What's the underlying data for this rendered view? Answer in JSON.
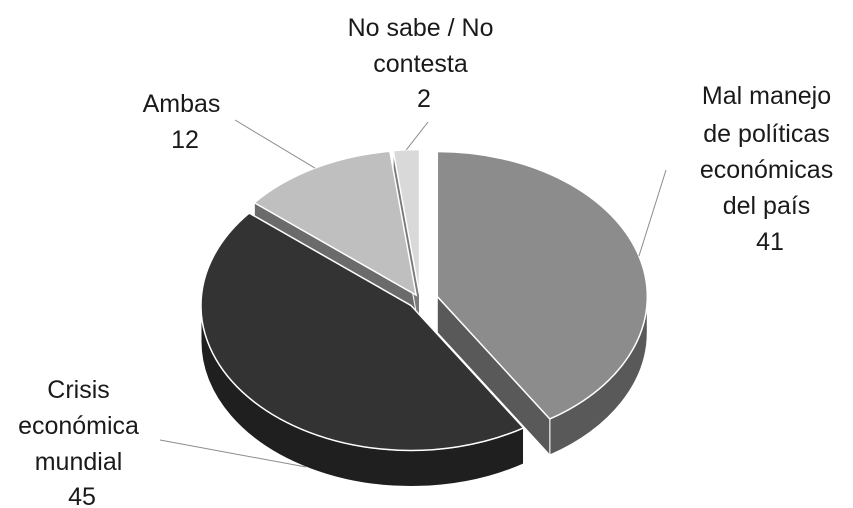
{
  "chart_data": {
    "type": "pie",
    "title": "",
    "style": "3d-exploded",
    "slices": [
      {
        "label": "Mal manejo de políticas económicas del país",
        "label_lines": [
          "Mal manejo",
          "de políticas",
          "económicas",
          "del país"
        ],
        "value": 41,
        "value_label": "41",
        "color": "#8c8c8c",
        "side_color": "#595959"
      },
      {
        "label": "Crisis económica mundial",
        "label_lines": [
          "Crisis",
          "económica",
          "mundial"
        ],
        "value": 45,
        "value_label": "45",
        "color": "#333333",
        "side_color": "#1f1f1f"
      },
      {
        "label": "Ambas",
        "label_lines": [
          "Ambas"
        ],
        "value": 12,
        "value_label": "12",
        "color": "#bfbfbf",
        "side_color": "#6b6b6b"
      },
      {
        "label": "No sabe / No contesta",
        "label_lines": [
          "No sabe / No",
          "contesta"
        ],
        "value": 2,
        "value_label": "2",
        "color": "#d9d9d9",
        "side_color": "#7a7a7a"
      }
    ]
  }
}
